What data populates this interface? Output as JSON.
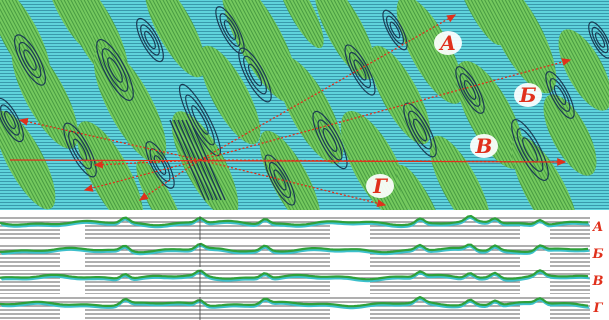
{
  "figure": {
    "map_labels": [
      "А",
      "Б",
      "В",
      "Г"
    ],
    "profile_labels": [
      "А",
      "Б",
      "В",
      "Г"
    ],
    "colors": {
      "background": "#ffffff",
      "fill_green": "#6fc65a",
      "fill_cyan": "#5fd3dc",
      "hatch_light": "#3fb0c0",
      "contour": "#1b3b54",
      "ray": "#e0301c",
      "label_text": "#e0301c",
      "profile_gray": "#8d8d8d",
      "profile_green": "#2fa03a",
      "profile_cyan": "#3cc0cc"
    }
  }
}
